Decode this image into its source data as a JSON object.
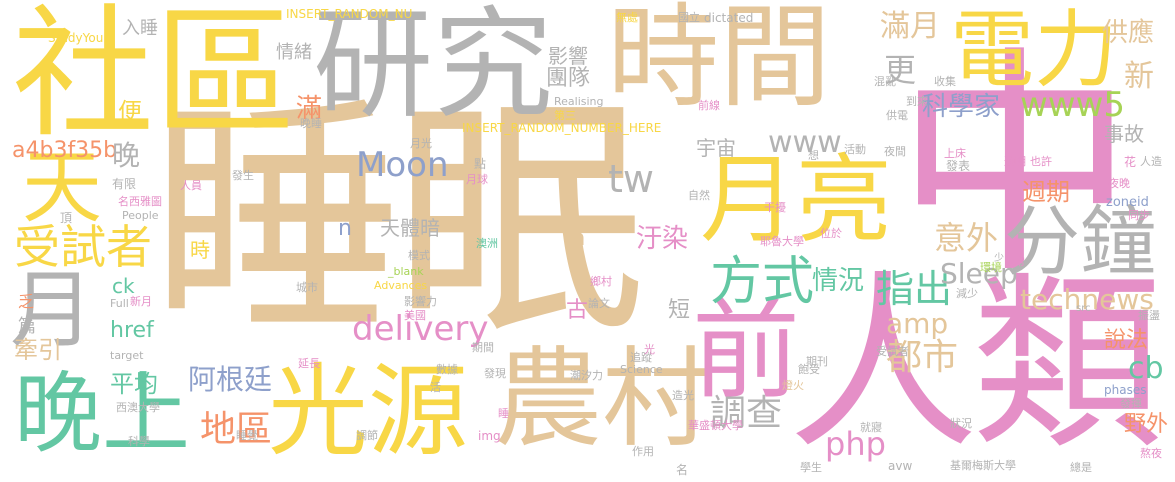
{
  "colors": {
    "tan": "#e4c69a",
    "gray": "#b3b3b3",
    "yellow": "#f8d746",
    "pink": "#e58fc7",
    "teal": "#63c7a3",
    "orange": "#f5936a",
    "blue": "#8ea0cb",
    "green": "#a7d356"
  },
  "words": [
    {
      "text": "睡眠",
      "color": "tan"
    },
    {
      "text": "中",
      "color": "pink"
    },
    {
      "text": "人類",
      "color": "pink"
    },
    {
      "text": "時間",
      "color": "tan"
    },
    {
      "text": "研究",
      "color": "gray"
    },
    {
      "text": "社區",
      "color": "yellow"
    },
    {
      "text": "農村",
      "color": "tan"
    },
    {
      "text": "光源",
      "color": "yellow"
    },
    {
      "text": "晚上",
      "color": "teal"
    },
    {
      "text": "月亮",
      "color": "yellow"
    },
    {
      "text": "前",
      "color": "pink"
    },
    {
      "text": "電力",
      "color": "yellow"
    },
    {
      "text": "分鐘",
      "color": "gray"
    },
    {
      "text": "月",
      "color": "gray"
    },
    {
      "text": "天",
      "color": "yellow"
    },
    {
      "text": "方式",
      "color": "teal"
    },
    {
      "text": "受試者",
      "color": "yellow"
    },
    {
      "text": "technews",
      "color": "tan"
    },
    {
      "text": "delivery",
      "color": "pink"
    },
    {
      "text": "Moon",
      "color": "blue"
    },
    {
      "text": "www5",
      "color": "green"
    },
    {
      "text": "tw",
      "color": "gray"
    },
    {
      "text": "www",
      "color": "gray"
    },
    {
      "text": "指出",
      "color": "teal"
    },
    {
      "text": "意外",
      "color": "tan"
    },
    {
      "text": "汙染",
      "color": "pink"
    },
    {
      "text": "滿月",
      "color": "tan"
    },
    {
      "text": "科學家",
      "color": "blue"
    },
    {
      "text": "調查",
      "color": "gray"
    },
    {
      "text": "都市",
      "color": "tan"
    },
    {
      "text": "php",
      "color": "pink"
    },
    {
      "text": "amp",
      "color": "tan"
    },
    {
      "text": "地區",
      "color": "orange"
    },
    {
      "text": "阿根廷",
      "color": "blue"
    },
    {
      "text": "平均",
      "color": "teal"
    },
    {
      "text": "情況",
      "color": "teal"
    },
    {
      "text": "Sleep",
      "color": "gray"
    },
    {
      "text": "天體暗",
      "color": "gray"
    },
    {
      "text": "週期",
      "color": "orange"
    },
    {
      "text": "供應",
      "color": "tan"
    },
    {
      "text": "新",
      "color": "tan"
    },
    {
      "text": "cb",
      "color": "teal"
    },
    {
      "text": "說法",
      "color": "orange"
    },
    {
      "text": "野外",
      "color": "orange"
    },
    {
      "text": "事故",
      "color": "gray"
    },
    {
      "text": "a4b3f35b",
      "color": "orange"
    },
    {
      "text": "晚",
      "color": "gray"
    },
    {
      "text": "便",
      "color": "yellow"
    },
    {
      "text": "團隊",
      "color": "gray"
    },
    {
      "text": "更",
      "color": "gray"
    },
    {
      "text": "滿",
      "color": "orange"
    },
    {
      "text": "牽引",
      "color": "tan"
    },
    {
      "text": "href",
      "color": "teal"
    },
    {
      "text": "ck",
      "color": "teal"
    },
    {
      "text": "影響",
      "color": "gray"
    },
    {
      "text": "宇宙",
      "color": "gray"
    },
    {
      "text": "情緒",
      "color": "gray"
    },
    {
      "text": "入睡",
      "color": "gray"
    },
    {
      "text": "古",
      "color": "pink"
    },
    {
      "text": "短",
      "color": "gray"
    },
    {
      "text": "a",
      "color": "tan"
    },
    {
      "text": "n",
      "color": "blue"
    },
    {
      "text": "時",
      "color": "yellow"
    },
    {
      "text": "StudyYour",
      "color": "yellow"
    },
    {
      "text": "INSERT_RANDOM_NU",
      "color": "yellow"
    },
    {
      "text": "INSERT_RANDOM_NUMBER_HERE",
      "color": "yellow"
    },
    {
      "text": "Realising",
      "color": "gray"
    },
    {
      "text": "dictated",
      "color": "gray"
    },
    {
      "text": "zoneid",
      "color": "blue"
    },
    {
      "text": "phases",
      "color": "blue"
    },
    {
      "text": "src",
      "color": "gray"
    },
    {
      "text": "Advances",
      "color": "yellow"
    },
    {
      "text": "_blank",
      "color": "green"
    },
    {
      "text": "Science",
      "color": "gray"
    },
    {
      "text": "People",
      "color": "gray"
    },
    {
      "text": "Full",
      "color": "gray"
    },
    {
      "text": "target",
      "color": "gray"
    },
    {
      "text": "img",
      "color": "pink"
    },
    {
      "text": "avw",
      "color": "gray"
    },
    {
      "text": "篇",
      "color": "gray"
    },
    {
      "text": "乏",
      "color": "orange"
    },
    {
      "text": "有限",
      "color": "gray"
    },
    {
      "text": "名西雅圖",
      "color": "pink"
    },
    {
      "text": "新月",
      "color": "pink"
    },
    {
      "text": "科學",
      "color": "gray"
    },
    {
      "text": "西澳大學",
      "color": "gray"
    },
    {
      "text": "晚睡",
      "color": "gray"
    },
    {
      "text": "月光",
      "color": "gray"
    },
    {
      "text": "人員",
      "color": "pink"
    },
    {
      "text": "發生",
      "color": "gray"
    },
    {
      "text": "月球",
      "color": "pink"
    },
    {
      "text": "點",
      "color": "gray"
    },
    {
      "text": "第三",
      "color": "yellow"
    },
    {
      "text": "無處",
      "color": "yellow"
    },
    {
      "text": "國立",
      "color": "gray"
    },
    {
      "text": "前線",
      "color": "pink"
    },
    {
      "text": "混亂",
      "color": "gray"
    },
    {
      "text": "收集",
      "color": "gray"
    },
    {
      "text": "到來",
      "color": "gray"
    },
    {
      "text": "供電",
      "color": "gray"
    },
    {
      "text": "活動",
      "color": "gray"
    },
    {
      "text": "想",
      "color": "gray"
    },
    {
      "text": "夜間",
      "color": "gray"
    },
    {
      "text": "上床",
      "color": "pink"
    },
    {
      "text": "發表",
      "color": "gray"
    },
    {
      "text": "通明",
      "color": "pink"
    },
    {
      "text": "也許",
      "color": "pink"
    },
    {
      "text": "花",
      "color": "pink"
    },
    {
      "text": "人造",
      "color": "gray"
    },
    {
      "text": "夜晚",
      "color": "pink"
    },
    {
      "text": "同步",
      "color": "pink"
    },
    {
      "text": "干擾",
      "color": "pink"
    },
    {
      "text": "位於",
      "color": "pink"
    },
    {
      "text": "耶魯大學",
      "color": "pink"
    },
    {
      "text": "環境",
      "color": "green"
    },
    {
      "text": "減少",
      "color": "gray"
    },
    {
      "text": "常",
      "color": "pink"
    },
    {
      "text": "振盪",
      "color": "gray"
    },
    {
      "text": "期刊",
      "color": "gray"
    },
    {
      "text": "燈火",
      "color": "tan"
    },
    {
      "text": "飽受",
      "color": "gray"
    },
    {
      "text": "受試者",
      "color": "gray"
    },
    {
      "text": "發揮",
      "color": "gray"
    },
    {
      "text": "就寢",
      "color": "gray"
    },
    {
      "text": "狀況",
      "color": "gray"
    },
    {
      "text": "熬夜",
      "color": "pink"
    },
    {
      "text": "華盛頓大學",
      "color": "pink"
    },
    {
      "text": "學生",
      "color": "gray"
    },
    {
      "text": "基爾梅斯大學",
      "color": "gray"
    },
    {
      "text": "總是",
      "color": "gray"
    },
    {
      "text": "潮汐力",
      "color": "gray"
    },
    {
      "text": "造光",
      "color": "gray"
    },
    {
      "text": "追蹤",
      "color": "gray"
    },
    {
      "text": "發現",
      "color": "gray"
    },
    {
      "text": "論文",
      "color": "gray"
    },
    {
      "text": "數據",
      "color": "gray"
    },
    {
      "text": "期間",
      "color": "gray"
    },
    {
      "text": "影響力",
      "color": "gray"
    },
    {
      "text": "美國",
      "color": "pink"
    },
    {
      "text": "城市",
      "color": "gray"
    },
    {
      "text": "模式",
      "color": "gray"
    },
    {
      "text": "澳洲",
      "color": "teal"
    },
    {
      "text": "睡覺",
      "color": "gray"
    },
    {
      "text": "調節",
      "color": "gray"
    },
    {
      "text": "延長",
      "color": "pink"
    },
    {
      "text": "作用",
      "color": "gray"
    },
    {
      "text": "名",
      "color": "gray"
    },
    {
      "text": "睡",
      "color": "pink"
    },
    {
      "text": "光",
      "color": "pink"
    },
    {
      "text": "鄉村",
      "color": "pink"
    },
    {
      "text": "自然",
      "color": "gray"
    },
    {
      "text": "活",
      "color": "gray"
    },
    {
      "text": "少",
      "color": "gray"
    },
    {
      "text": "頂",
      "color": "gray"
    }
  ]
}
